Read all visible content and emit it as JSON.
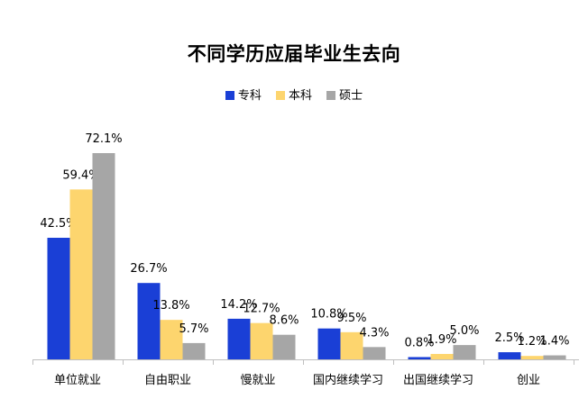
{
  "chart_data": {
    "type": "bar",
    "title": "不同学历应届毕业生去向",
    "categories": [
      "单位就业",
      "自由职业",
      "慢就业",
      "国内继续学习",
      "出国继续学习",
      "创业"
    ],
    "series": [
      {
        "name": "专科",
        "color": "#1a3fd6",
        "values": [
          42.5,
          26.7,
          14.2,
          10.8,
          0.8,
          2.5
        ]
      },
      {
        "name": "本科",
        "color": "#fdd56e",
        "values": [
          59.4,
          13.8,
          12.7,
          9.5,
          1.9,
          1.2
        ]
      },
      {
        "name": "硕士",
        "color": "#a6a6a6",
        "values": [
          72.1,
          5.7,
          8.6,
          4.3,
          5.0,
          1.4
        ]
      }
    ],
    "data_labels": [
      [
        "42.5%",
        "26.7%",
        "14.2%",
        "10.8%",
        "0.8%",
        "2.5%"
      ],
      [
        "59.4%",
        "13.8%",
        "12.7%",
        "9.5%",
        "1.9%",
        "1.2%"
      ],
      [
        "72.1%",
        "5.7%",
        "8.6%",
        "4.3%",
        "5.0%",
        "1.4%"
      ]
    ],
    "ylim": [
      0,
      75
    ],
    "grid": false,
    "legend_position": "top"
  }
}
